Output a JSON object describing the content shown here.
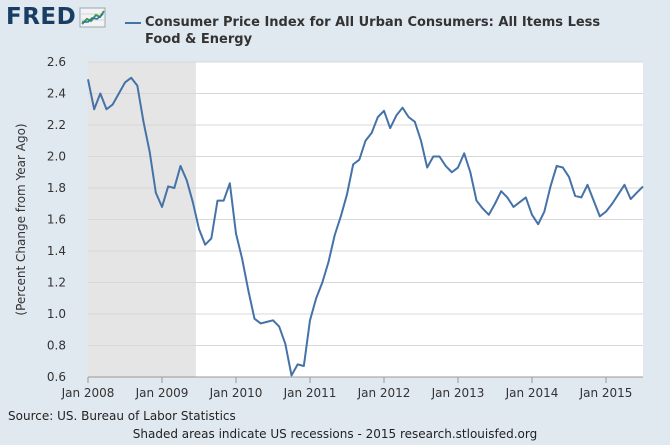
{
  "header": {
    "logo_text": "FRED",
    "legend_label": "Consumer Price Index for All Urban Consumers: All Items Less Food & Energy",
    "series_color": "#4572a7"
  },
  "footer": {
    "source": "Source: US. Bureau of Labor Statistics",
    "note": "Shaded areas indicate US recessions - 2015 research.stlouisfed.org"
  },
  "chart_data": {
    "type": "line",
    "title": "Consumer Price Index for All Urban Consumers: All Items Less Food & Energy",
    "xlabel": "",
    "ylabel": "(Percent Change from Year Ago)",
    "ylim": [
      0.6,
      2.6
    ],
    "yticks": [
      "0.6",
      "0.8",
      "1.0",
      "1.2",
      "1.4",
      "1.6",
      "1.8",
      "2.0",
      "2.2",
      "2.4",
      "2.6"
    ],
    "xticks": [
      "Jan 2008",
      "Jan 2009",
      "Jan 2010",
      "Jan 2011",
      "Jan 2012",
      "Jan 2013",
      "Jan 2014",
      "Jan 2015"
    ],
    "x_start": "Jan 2008",
    "x_end": "Jul 2015",
    "grid": true,
    "recession": {
      "start": "Jan 2008",
      "end": "Jun 2009",
      "color": "#e5e5e5"
    },
    "series": [
      {
        "name": "Consumer Price Index for All Urban Consumers: All Items Less Food & Energy",
        "start": "Jan 2008",
        "frequency": "monthly",
        "values": [
          2.49,
          2.3,
          2.4,
          2.3,
          2.33,
          2.4,
          2.47,
          2.5,
          2.45,
          2.22,
          2.03,
          1.77,
          1.68,
          1.81,
          1.8,
          1.94,
          1.85,
          1.71,
          1.54,
          1.44,
          1.48,
          1.72,
          1.72,
          1.83,
          1.51,
          1.35,
          1.15,
          0.97,
          0.94,
          0.95,
          0.96,
          0.92,
          0.81,
          0.61,
          0.68,
          0.67,
          0.96,
          1.1,
          1.2,
          1.33,
          1.5,
          1.62,
          1.76,
          1.95,
          1.98,
          2.1,
          2.15,
          2.25,
          2.29,
          2.18,
          2.26,
          2.31,
          2.25,
          2.22,
          2.1,
          1.93,
          2.0,
          2.0,
          1.94,
          1.9,
          1.93,
          2.02,
          1.9,
          1.72,
          1.67,
          1.63,
          1.7,
          1.78,
          1.74,
          1.68,
          1.71,
          1.74,
          1.63,
          1.57,
          1.65,
          1.81,
          1.94,
          1.93,
          1.87,
          1.75,
          1.74,
          1.82,
          1.72,
          1.62,
          1.65,
          1.7,
          1.76,
          1.82,
          1.73,
          1.77,
          1.81
        ]
      }
    ]
  }
}
